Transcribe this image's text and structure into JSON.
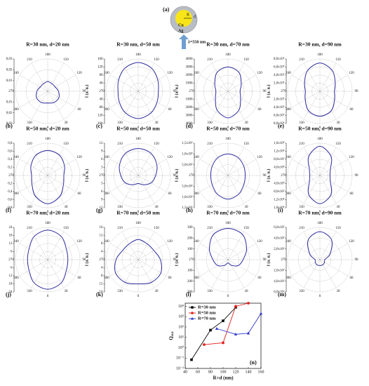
{
  "schematic": {
    "label": "(a)",
    "R": "R",
    "d": "d",
    "core": "Cu",
    "shell": "Ag",
    "wavelength": "λ=550 nm"
  },
  "chart_data": [
    {
      "type": "polar",
      "panel": "(b)",
      "title": "R=30 nm, d=20 nm",
      "ylabel": "I (a. u.)",
      "theta": [
        0,
        30,
        60,
        90,
        120,
        150,
        180,
        210,
        240,
        270,
        300,
        330
      ],
      "r": [
        0.011,
        0.012,
        0.012,
        0.01,
        0.008,
        0.008,
        0.009,
        0.008,
        0.008,
        0.01,
        0.012,
        0.012
      ],
      "rlim": [
        0,
        0.03
      ],
      "rticks": [
        {
          "value": 0.01,
          "label": "0,01"
        },
        {
          "value": 0.02,
          "label": "0,02"
        },
        {
          "value": 0.03,
          "label": "0,03"
        }
      ],
      "color": "#2e2e9e",
      "grid": true
    },
    {
      "type": "polar",
      "panel": "(c)",
      "title": "R=30 nm, d=50 nm",
      "ylabel": "I (a. u.)",
      "theta": [
        0,
        30,
        60,
        90,
        120,
        150,
        180,
        210,
        240,
        270,
        300,
        330
      ],
      "r": [
        135,
        125,
        108,
        100,
        112,
        132,
        142,
        132,
        112,
        100,
        108,
        125
      ],
      "rlim": [
        0,
        160
      ],
      "rticks": [
        40,
        80,
        120,
        160
      ],
      "color": "#2e2e9e",
      "grid": true
    },
    {
      "type": "polar",
      "panel": "(d)",
      "title": "R=30 nm, d=70 nm",
      "ylabel": "I (a. u.)",
      "theta": [
        0,
        30,
        60,
        90,
        120,
        150,
        180,
        210,
        240,
        270,
        300,
        330
      ],
      "r": [
        3300,
        2700,
        1800,
        1500,
        1900,
        2700,
        3000,
        2700,
        1900,
        1500,
        1800,
        2700
      ],
      "rlim": [
        0,
        4000
      ],
      "rticks": [
        1000,
        2000,
        3000,
        4000
      ],
      "color": "#2e2e9e",
      "grid": true
    },
    {
      "type": "polar",
      "panel": "(e)",
      "title": "R=30 nm, d=90 nm",
      "ylabel": "I (a. u.)",
      "theta": [
        0,
        30,
        60,
        90,
        120,
        150,
        180,
        210,
        240,
        270,
        300,
        330
      ],
      "r": [
        620000,
        560000,
        420000,
        360000,
        440000,
        600000,
        700000,
        600000,
        440000,
        360000,
        420000,
        560000
      ],
      "rlim": [
        0,
        800000
      ],
      "rticks": [
        {
          "value": 200000,
          "label": "2,0x10⁵"
        },
        {
          "value": 400000,
          "label": "4,0x10⁵"
        },
        {
          "value": 600000,
          "label": "6,0x10⁵"
        },
        {
          "value": 800000,
          "label": "8,0x10⁵"
        }
      ],
      "color": "#2e2e9e",
      "grid": true
    },
    {
      "type": "polar",
      "panel": "(f)",
      "title": "R=50 nm, d=20 nm",
      "ylabel": "I (a. u.)",
      "theta": [
        0,
        30,
        60,
        90,
        120,
        150,
        180,
        210,
        240,
        270,
        300,
        330
      ],
      "r": [
        0.7,
        0.6,
        0.45,
        0.4,
        0.48,
        0.58,
        0.62,
        0.58,
        0.48,
        0.4,
        0.45,
        0.6
      ],
      "rlim": [
        0,
        0.8
      ],
      "rticks": [
        {
          "value": 0.2,
          "label": "0,2"
        },
        {
          "value": 0.4,
          "label": "0,4"
        },
        {
          "value": 0.6,
          "label": "0,6"
        },
        {
          "value": 0.8,
          "label": "0,8"
        }
      ],
      "color": "#2e2e9e",
      "grid": true
    },
    {
      "type": "polar",
      "panel": "(g)",
      "title": "R=50 nm, d=50 nm",
      "ylabel": "I (a. u.)",
      "theta": [
        0,
        30,
        60,
        90,
        120,
        150,
        180,
        210,
        240,
        270,
        300,
        330
      ],
      "r": [
        3,
        4,
        5.5,
        6.5,
        8,
        9.5,
        10,
        9.5,
        8,
        6.5,
        5.5,
        4
      ],
      "rlim": [
        0,
        12
      ],
      "rticks": [
        3,
        6,
        9,
        12
      ],
      "color": "#2e2e9e",
      "grid": true
    },
    {
      "type": "polar",
      "panel": "(h)",
      "title": "R=50 nm, d=70 nm",
      "ylabel": "I (a. u.)",
      "theta": [
        0,
        30,
        60,
        90,
        120,
        150,
        180,
        210,
        240,
        270,
        300,
        330
      ],
      "r": [
        1100,
        1000,
        850,
        800,
        850,
        950,
        1000,
        950,
        850,
        800,
        850,
        1000
      ],
      "rlim": [
        0,
        1500
      ],
      "rticks": [
        {
          "value": 500,
          "label": "5,0x10²"
        },
        {
          "value": 1000,
          "label": "1,0x10³"
        },
        {
          "value": 1500,
          "label": "1,5x10³"
        }
      ],
      "color": "#2e2e9e",
      "grid": true
    },
    {
      "type": "polar",
      "panel": "(i)",
      "title": "R=50 nm, d=90 nm",
      "ylabel": "I (a. u.)",
      "theta": [
        0,
        30,
        60,
        90,
        120,
        150,
        180,
        210,
        240,
        270,
        300,
        330
      ],
      "r": [
        14000,
        11000,
        6000,
        5000,
        6000,
        11000,
        14500,
        11000,
        6000,
        5000,
        6000,
        11000
      ],
      "rlim": [
        0,
        16000
      ],
      "rticks": [
        {
          "value": 4000,
          "label": "4,0x10³"
        },
        {
          "value": 8000,
          "label": "8,0x10³"
        },
        {
          "value": 12000,
          "label": "1,2x10⁴"
        },
        {
          "value": 16000,
          "label": "1,6x10⁴"
        }
      ],
      "color": "#2e2e9e",
      "grid": true
    },
    {
      "type": "polar",
      "panel": "(j)",
      "title": "R=70 nm, d=20 nm",
      "ylabel": "I (a. u.)",
      "theta": [
        0,
        30,
        60,
        90,
        120,
        150,
        180,
        210,
        240,
        270,
        300,
        330
      ],
      "r": [
        22,
        20,
        16,
        15,
        16,
        20,
        22,
        20,
        16,
        15,
        16,
        20
      ],
      "rlim": [
        0,
        24
      ],
      "rticks": [
        6,
        12,
        18,
        24
      ],
      "color": "#2e2e9e",
      "grid": true
    },
    {
      "type": "polar",
      "panel": "(k)",
      "title": "R=70 nm, d=50 nm",
      "ylabel": "I (a. u.)",
      "theta": [
        0,
        30,
        60,
        90,
        120,
        150,
        180,
        210,
        240,
        270,
        300,
        330
      ],
      "r": [
        12,
        13,
        13,
        11,
        9,
        9,
        10,
        9,
        9,
        11,
        13,
        13
      ],
      "rlim": [
        0,
        16
      ],
      "rticks": [
        4,
        8,
        12,
        16
      ],
      "color": "#2e2e9e",
      "grid": true
    },
    {
      "type": "polar",
      "panel": "(l)",
      "title": "R=70 nm, d=70 nm",
      "ylabel": "I (a. u.)",
      "theta": [
        0,
        30,
        60,
        90,
        120,
        150,
        180,
        210,
        240,
        270,
        300,
        330
      ],
      "r": [
        30,
        60,
        110,
        140,
        200,
        270,
        290,
        270,
        200,
        140,
        110,
        60
      ],
      "rlim": [
        0,
        300
      ],
      "rticks": [
        100,
        200,
        300
      ],
      "color": "#2e2e9e",
      "grid": true
    },
    {
      "type": "polar",
      "panel": "(m)",
      "title": "R=70 nm, d=90 nm",
      "ylabel": "I (a. u.)",
      "theta": [
        0,
        30,
        60,
        90,
        120,
        150,
        180,
        210,
        240,
        270,
        300,
        330
      ],
      "r": [
        110,
        110,
        100,
        90,
        220,
        430,
        520,
        430,
        220,
        90,
        100,
        110
      ],
      "rlim": [
        0,
        600
      ],
      "rticks": [
        {
          "value": 200,
          "label": "2,0x10²"
        },
        {
          "value": 400,
          "label": "4,0x10²"
        },
        {
          "value": 600,
          "label": "6,0x10²"
        }
      ],
      "color": "#2e2e9e",
      "grid": true
    },
    {
      "type": "line",
      "panel": "(n)",
      "xlabel": "R+d (nm)",
      "ylabel": "Q",
      "ylabel_sub": "sca",
      "yscale": "log",
      "legend": "upper left",
      "xlim": [
        40,
        160
      ],
      "xticks": [
        40,
        60,
        80,
        100,
        120,
        140,
        160
      ],
      "ylim": [
        0.01,
        20000
      ],
      "yticks": [
        {
          "value": 0.01,
          "label": "10⁻²"
        },
        {
          "value": 0.1,
          "label": "10⁻¹"
        },
        {
          "value": 1,
          "label": "10⁰"
        },
        {
          "value": 10,
          "label": "10¹"
        },
        {
          "value": 100,
          "label": "10²"
        },
        {
          "value": 1000,
          "label": "10³"
        },
        {
          "value": 10000,
          "label": "10⁴"
        }
      ],
      "series": [
        {
          "name": "R=30 nm",
          "color": "#000000",
          "marker": "square",
          "x": [
            50,
            80,
            100,
            120
          ],
          "values": [
            0.07,
            50,
            400,
            8000
          ]
        },
        {
          "name": "R=50 nm",
          "color": "#e0201b",
          "marker": "circle",
          "x": [
            70,
            100,
            120,
            140
          ],
          "values": [
            2,
            3,
            10000,
            20000
          ]
        },
        {
          "name": "R=70 nm",
          "color": "#2a34c8",
          "marker": "triangle",
          "x": [
            90,
            120,
            140,
            160
          ],
          "values": [
            70,
            20,
            25,
            2000
          ]
        }
      ]
    }
  ]
}
